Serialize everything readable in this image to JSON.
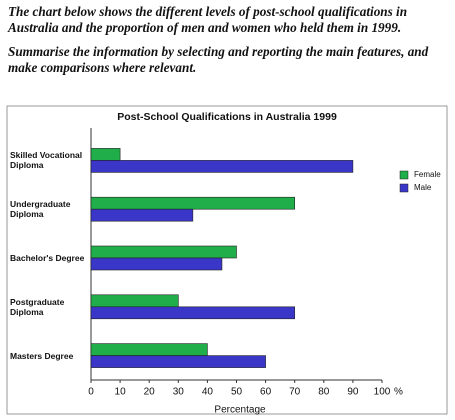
{
  "prompt": {
    "paragraphs": [
      "The chart below shows the different levels of post-school qualifications in Australia and the proportion of men and women who held them in 1999.",
      "Summarise the information by selecting and reporting the main features, and make comparisons where relevant."
    ]
  },
  "chart_data": {
    "type": "hbar",
    "title": "Post-School Qualifications in Australia 1999",
    "categories": [
      "Skilled Vocational Diploma",
      "Undergraduate Diploma",
      "Bachelor's Degree",
      "Postgraduate Diploma",
      "Masters Degree"
    ],
    "series": [
      {
        "name": "Female",
        "color": "#1fae4a",
        "values": [
          10,
          70,
          50,
          30,
          40
        ]
      },
      {
        "name": "Male",
        "color": "#3a36c8",
        "values": [
          90,
          35,
          45,
          70,
          60
        ]
      }
    ],
    "xlim": [
      0,
      100
    ],
    "xticks": [
      0,
      10,
      20,
      30,
      40,
      50,
      60,
      70,
      80,
      90,
      100
    ],
    "x_unit": "%",
    "xlabel": "Percentage",
    "legend": "right"
  }
}
